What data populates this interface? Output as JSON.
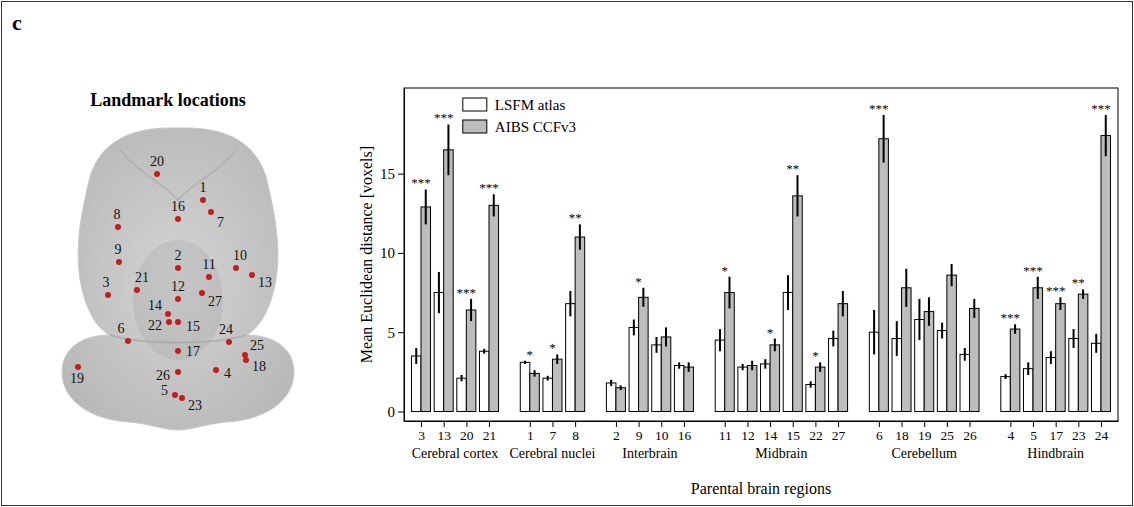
{
  "panel_label": "c",
  "diagram": {
    "title": "Landmark locations",
    "landmarks": [
      20,
      1,
      16,
      7,
      8,
      9,
      10,
      13,
      2,
      11,
      3,
      21,
      12,
      27,
      14,
      22,
      15,
      6,
      24,
      25,
      18,
      17,
      19,
      26,
      4,
      5,
      23
    ]
  },
  "chart_data": {
    "type": "bar",
    "x_label": "Parental brain regions",
    "y_label": "Mean Euclidean distance [voxels]",
    "categories": [
      "3",
      "13",
      "20",
      "21",
      "1",
      "7",
      "8",
      "2",
      "9",
      "10",
      "16",
      "11",
      "12",
      "14",
      "15",
      "22",
      "27",
      "6",
      "18",
      "19",
      "25",
      "26",
      "4",
      "5",
      "17",
      "23",
      "24"
    ],
    "category_groups": [
      "Cerebral cortex",
      "Cerebral cortex",
      "Cerebral cortex",
      "Cerebral cortex",
      "Cerebral nuclei",
      "Cerebral nuclei",
      "Cerebral nuclei",
      "Interbrain",
      "Interbrain",
      "Interbrain",
      "Interbrain",
      "Midbrain",
      "Midbrain",
      "Midbrain",
      "Midbrain",
      "Midbrain",
      "Midbrain",
      "Cerebellum",
      "Cerebellum",
      "Cerebellum",
      "Cerebellum",
      "Cerebellum",
      "Hindbrain",
      "Hindbrain",
      "Hindbrain",
      "Hindbrain",
      "Hindbrain"
    ],
    "series": [
      {
        "name": "LSFM atlas",
        "color": "#ffffff",
        "values": [
          3.5,
          7.5,
          2.1,
          3.8,
          3.1,
          2.1,
          6.8,
          1.8,
          5.3,
          4.2,
          2.9,
          4.5,
          2.8,
          3.0,
          7.5,
          1.7,
          4.6,
          5.0,
          4.6,
          5.8,
          5.1,
          3.6,
          2.2,
          2.7,
          3.4,
          4.6,
          4.3
        ],
        "errors": [
          0.5,
          1.3,
          0.2,
          0.15,
          0.1,
          0.15,
          0.8,
          0.2,
          0.5,
          0.5,
          0.2,
          0.7,
          0.2,
          0.3,
          1.1,
          0.2,
          0.5,
          1.4,
          1.1,
          1.3,
          0.5,
          0.4,
          0.15,
          0.4,
          0.4,
          0.6,
          0.6
        ]
      },
      {
        "name": "AIBS CCFv3",
        "color": "#bdbdbd",
        "values": [
          12.9,
          16.5,
          6.4,
          13.0,
          2.4,
          3.3,
          11.0,
          1.5,
          7.2,
          4.7,
          2.8,
          7.5,
          2.9,
          4.2,
          13.6,
          2.8,
          6.8,
          17.2,
          7.8,
          6.3,
          8.6,
          6.5,
          5.2,
          7.8,
          6.8,
          7.4,
          17.4
        ],
        "errors": [
          1.1,
          1.6,
          0.7,
          0.7,
          0.2,
          0.3,
          0.8,
          0.15,
          0.6,
          0.6,
          0.3,
          1.0,
          0.3,
          0.4,
          1.3,
          0.3,
          0.8,
          1.5,
          1.2,
          0.9,
          0.7,
          0.6,
          0.3,
          0.7,
          0.4,
          0.3,
          1.3
        ]
      }
    ],
    "significance": [
      "***",
      "***",
      "***",
      "***",
      "*",
      "*",
      "**",
      null,
      "*",
      null,
      null,
      "*",
      null,
      "*",
      "**",
      "*",
      null,
      "***",
      null,
      null,
      null,
      null,
      "***",
      "***",
      "***",
      "**",
      "***"
    ],
    "ylim": [
      -0.6,
      20.4
    ],
    "yticks": [
      0,
      5,
      10,
      15
    ],
    "legend": "upper right",
    "stacked": false
  }
}
